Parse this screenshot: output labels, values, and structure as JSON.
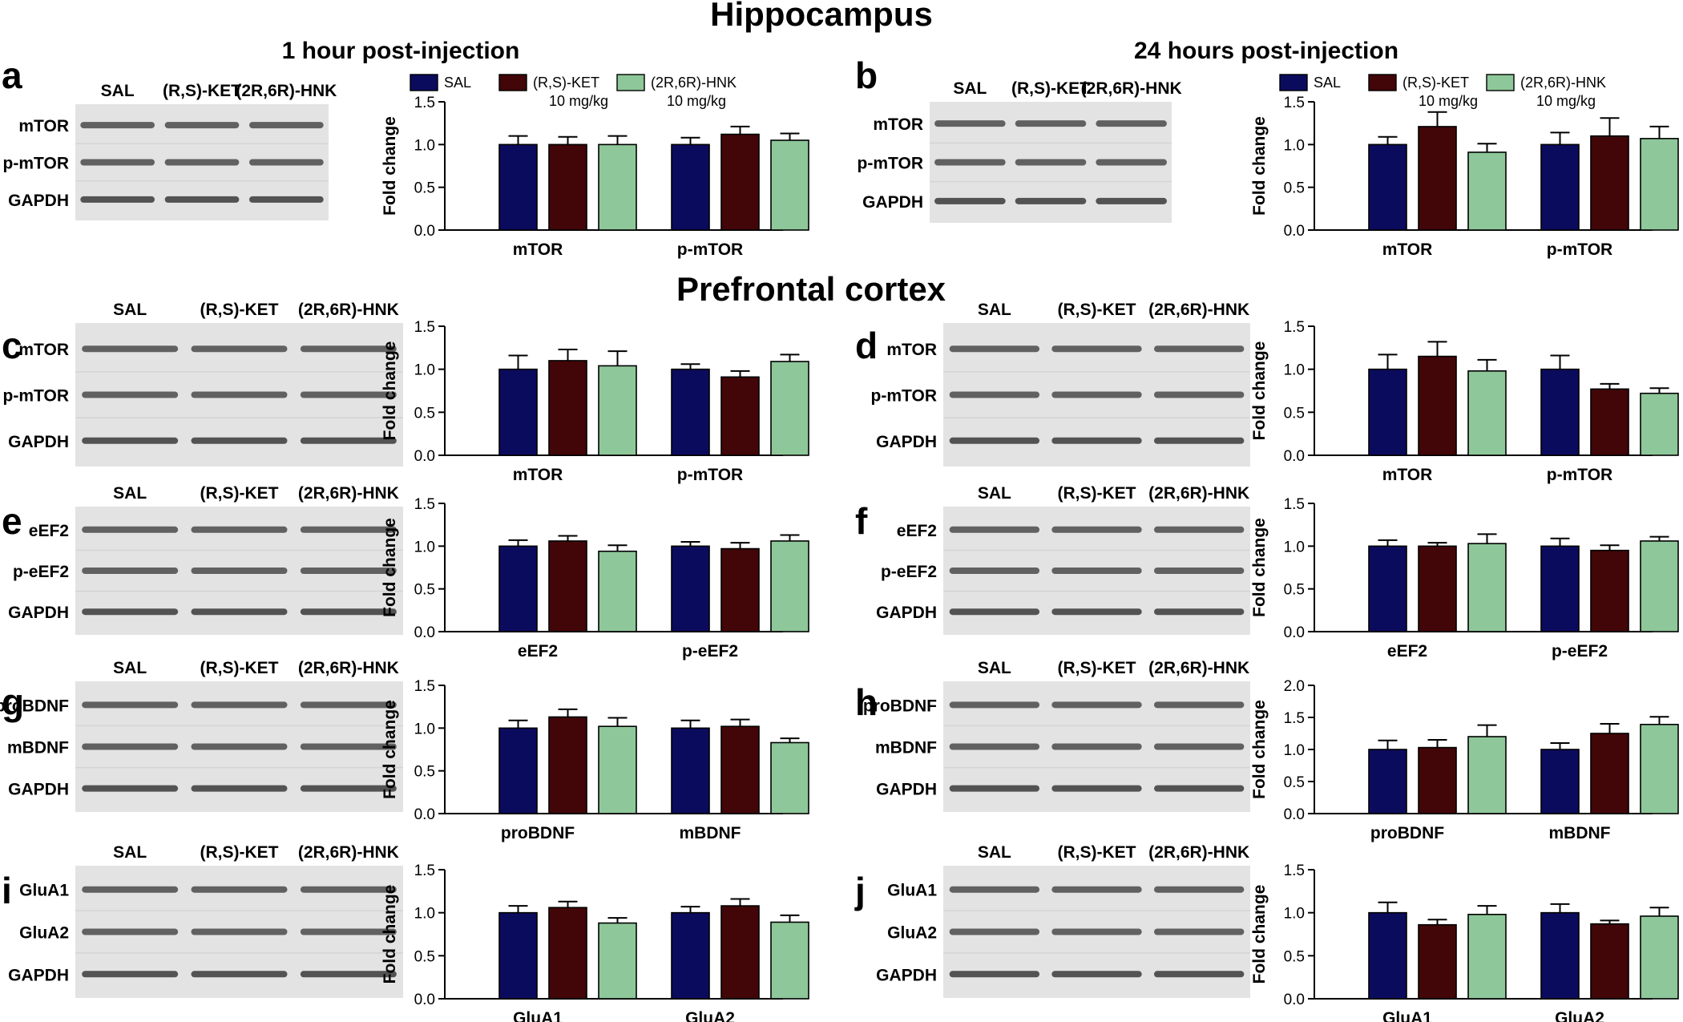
{
  "titles": {
    "hippocampus": "Hippocampus",
    "prefrontal": "Prefrontal cortex",
    "left_column": "1 hour post-injection",
    "right_column": "24 hours post-injection"
  },
  "legend": [
    {
      "label": "SAL",
      "sub": ""
    },
    {
      "label": "(R,S)-KET",
      "sub": "10 mg/kg"
    },
    {
      "label": "(2R,6R)-HNK",
      "sub": "10 mg/kg"
    }
  ],
  "colors": {
    "SAL": "#0b0b5e",
    "(R,S)-KET": "#420608",
    "(2R,6R)-HNK": "#8ec79a"
  },
  "blot_lanes": [
    "SAL",
    "(R,S)-KET",
    "(2R,6R)-HNK"
  ],
  "chart_data": [
    {
      "panel": "a",
      "type": "bar",
      "ylabel": "Fold change",
      "ylim": [
        0,
        1.5
      ],
      "yticks": [
        "0.0",
        "0.5",
        "1.0",
        "1.5"
      ],
      "categories": [
        "mTOR",
        "p-mTOR"
      ],
      "blot_rows": [
        "mTOR",
        "p-mTOR",
        "GAPDH"
      ],
      "legend_shown": true,
      "series": [
        {
          "name": "SAL",
          "values": [
            1.0,
            1.0
          ],
          "errors": [
            0.1,
            0.08
          ]
        },
        {
          "name": "(R,S)-KET",
          "values": [
            1.0,
            1.12
          ],
          "errors": [
            0.09,
            0.09
          ]
        },
        {
          "name": "(2R,6R)-HNK",
          "values": [
            1.0,
            1.05
          ],
          "errors": [
            0.1,
            0.08
          ]
        }
      ]
    },
    {
      "panel": "b",
      "type": "bar",
      "ylabel": "Fold change",
      "ylim": [
        0,
        1.5
      ],
      "yticks": [
        "0.0",
        "0.5",
        "1.0",
        "1.5"
      ],
      "categories": [
        "mTOR",
        "p-mTOR"
      ],
      "blot_rows": [
        "mTOR",
        "p-mTOR",
        "GAPDH"
      ],
      "legend_shown": true,
      "series": [
        {
          "name": "SAL",
          "values": [
            1.0,
            1.0
          ],
          "errors": [
            0.09,
            0.14
          ]
        },
        {
          "name": "(R,S)-KET",
          "values": [
            1.21,
            1.1
          ],
          "errors": [
            0.17,
            0.21
          ]
        },
        {
          "name": "(2R,6R)-HNK",
          "values": [
            0.91,
            1.07
          ],
          "errors": [
            0.1,
            0.14
          ]
        }
      ]
    },
    {
      "panel": "c",
      "type": "bar",
      "ylabel": "Fold change",
      "ylim": [
        0,
        1.5
      ],
      "yticks": [
        "0.0",
        "0.5",
        "1.0",
        "1.5"
      ],
      "categories": [
        "mTOR",
        "p-mTOR"
      ],
      "blot_rows": [
        "mTOR",
        "p-mTOR",
        "GAPDH"
      ],
      "legend_shown": false,
      "series": [
        {
          "name": "SAL",
          "values": [
            1.0,
            1.0
          ],
          "errors": [
            0.16,
            0.06
          ]
        },
        {
          "name": "(R,S)-KET",
          "values": [
            1.1,
            0.91
          ],
          "errors": [
            0.13,
            0.07
          ]
        },
        {
          "name": "(2R,6R)-HNK",
          "values": [
            1.04,
            1.09
          ],
          "errors": [
            0.17,
            0.08
          ]
        }
      ]
    },
    {
      "panel": "d",
      "type": "bar",
      "ylabel": "Fold change",
      "ylim": [
        0,
        1.5
      ],
      "yticks": [
        "0.0",
        "0.5",
        "1.0",
        "1.5"
      ],
      "categories": [
        "mTOR",
        "p-mTOR"
      ],
      "blot_rows": [
        "mTOR",
        "p-mTOR",
        "GAPDH"
      ],
      "legend_shown": false,
      "series": [
        {
          "name": "SAL",
          "values": [
            1.0,
            1.0
          ],
          "errors": [
            0.17,
            0.16
          ]
        },
        {
          "name": "(R,S)-KET",
          "values": [
            1.15,
            0.77
          ],
          "errors": [
            0.17,
            0.06
          ]
        },
        {
          "name": "(2R,6R)-HNK",
          "values": [
            0.98,
            0.72
          ],
          "errors": [
            0.13,
            0.06
          ]
        }
      ]
    },
    {
      "panel": "e",
      "type": "bar",
      "ylabel": "Fold change",
      "ylim": [
        0,
        1.5
      ],
      "yticks": [
        "0.0",
        "0.5",
        "1.0",
        "1.5"
      ],
      "categories": [
        "eEF2",
        "p-eEF2"
      ],
      "blot_rows": [
        "eEF2",
        "p-eEF2",
        "GAPDH"
      ],
      "legend_shown": false,
      "series": [
        {
          "name": "SAL",
          "values": [
            1.0,
            1.0
          ],
          "errors": [
            0.07,
            0.05
          ]
        },
        {
          "name": "(R,S)-KET",
          "values": [
            1.06,
            0.97
          ],
          "errors": [
            0.06,
            0.07
          ]
        },
        {
          "name": "(2R,6R)-HNK",
          "values": [
            0.94,
            1.06
          ],
          "errors": [
            0.07,
            0.07
          ]
        }
      ]
    },
    {
      "panel": "f",
      "type": "bar",
      "ylabel": "Fold change",
      "ylim": [
        0,
        1.5
      ],
      "yticks": [
        "0.0",
        "0.5",
        "1.0",
        "1.5"
      ],
      "categories": [
        "eEF2",
        "p-eEF2"
      ],
      "blot_rows": [
        "eEF2",
        "p-eEF2",
        "GAPDH"
      ],
      "legend_shown": false,
      "series": [
        {
          "name": "SAL",
          "values": [
            1.0,
            1.0
          ],
          "errors": [
            0.07,
            0.09
          ]
        },
        {
          "name": "(R,S)-KET",
          "values": [
            1.0,
            0.95
          ],
          "errors": [
            0.04,
            0.06
          ]
        },
        {
          "name": "(2R,6R)-HNK",
          "values": [
            1.03,
            1.06
          ],
          "errors": [
            0.11,
            0.05
          ]
        }
      ]
    },
    {
      "panel": "g",
      "type": "bar",
      "ylabel": "Fold change",
      "ylim": [
        0,
        1.5
      ],
      "yticks": [
        "0.0",
        "0.5",
        "1.0",
        "1.5"
      ],
      "categories": [
        "proBDNF",
        "mBDNF"
      ],
      "blot_rows": [
        "proBDNF",
        "mBDNF",
        "GAPDH"
      ],
      "legend_shown": false,
      "series": [
        {
          "name": "SAL",
          "values": [
            1.0,
            1.0
          ],
          "errors": [
            0.09,
            0.09
          ]
        },
        {
          "name": "(R,S)-KET",
          "values": [
            1.13,
            1.02
          ],
          "errors": [
            0.09,
            0.08
          ]
        },
        {
          "name": "(2R,6R)-HNK",
          "values": [
            1.02,
            0.83
          ],
          "errors": [
            0.1,
            0.05
          ]
        }
      ]
    },
    {
      "panel": "h",
      "type": "bar",
      "ylabel": "Fold change",
      "ylim": [
        0,
        2.0
      ],
      "yticks": [
        "0.0",
        "0.5",
        "1.0",
        "1.5",
        "2.0"
      ],
      "categories": [
        "proBDNF",
        "mBDNF"
      ],
      "blot_rows": [
        "proBDNF",
        "mBDNF",
        "GAPDH"
      ],
      "legend_shown": false,
      "series": [
        {
          "name": "SAL",
          "values": [
            1.0,
            1.0
          ],
          "errors": [
            0.14,
            0.1
          ]
        },
        {
          "name": "(R,S)-KET",
          "values": [
            1.03,
            1.25
          ],
          "errors": [
            0.12,
            0.15
          ]
        },
        {
          "name": "(2R,6R)-HNK",
          "values": [
            1.2,
            1.39
          ],
          "errors": [
            0.18,
            0.12
          ]
        }
      ]
    },
    {
      "panel": "i",
      "type": "bar",
      "ylabel": "Fold change",
      "ylim": [
        0,
        1.5
      ],
      "yticks": [
        "0.0",
        "0.5",
        "1.0",
        "1.5"
      ],
      "categories": [
        "GluA1",
        "GluA2"
      ],
      "blot_rows": [
        "GluA1",
        "GluA2",
        "GAPDH"
      ],
      "legend_shown": false,
      "series": [
        {
          "name": "SAL",
          "values": [
            1.0,
            1.0
          ],
          "errors": [
            0.08,
            0.07
          ]
        },
        {
          "name": "(R,S)-KET",
          "values": [
            1.06,
            1.08
          ],
          "errors": [
            0.07,
            0.08
          ]
        },
        {
          "name": "(2R,6R)-HNK",
          "values": [
            0.88,
            0.89
          ],
          "errors": [
            0.06,
            0.08
          ]
        }
      ]
    },
    {
      "panel": "j",
      "type": "bar",
      "ylabel": "Fold change",
      "ylim": [
        0,
        1.5
      ],
      "yticks": [
        "0.0",
        "0.5",
        "1.0",
        "1.5"
      ],
      "categories": [
        "GluA1",
        "GluA2"
      ],
      "blot_rows": [
        "GluA1",
        "GluA2",
        "GAPDH"
      ],
      "legend_shown": false,
      "series": [
        {
          "name": "SAL",
          "values": [
            1.0,
            1.0
          ],
          "errors": [
            0.12,
            0.1
          ]
        },
        {
          "name": "(R,S)-KET",
          "values": [
            0.86,
            0.87
          ],
          "errors": [
            0.06,
            0.04
          ]
        },
        {
          "name": "(2R,6R)-HNK",
          "values": [
            0.98,
            0.96
          ],
          "errors": [
            0.1,
            0.1
          ]
        }
      ]
    }
  ]
}
